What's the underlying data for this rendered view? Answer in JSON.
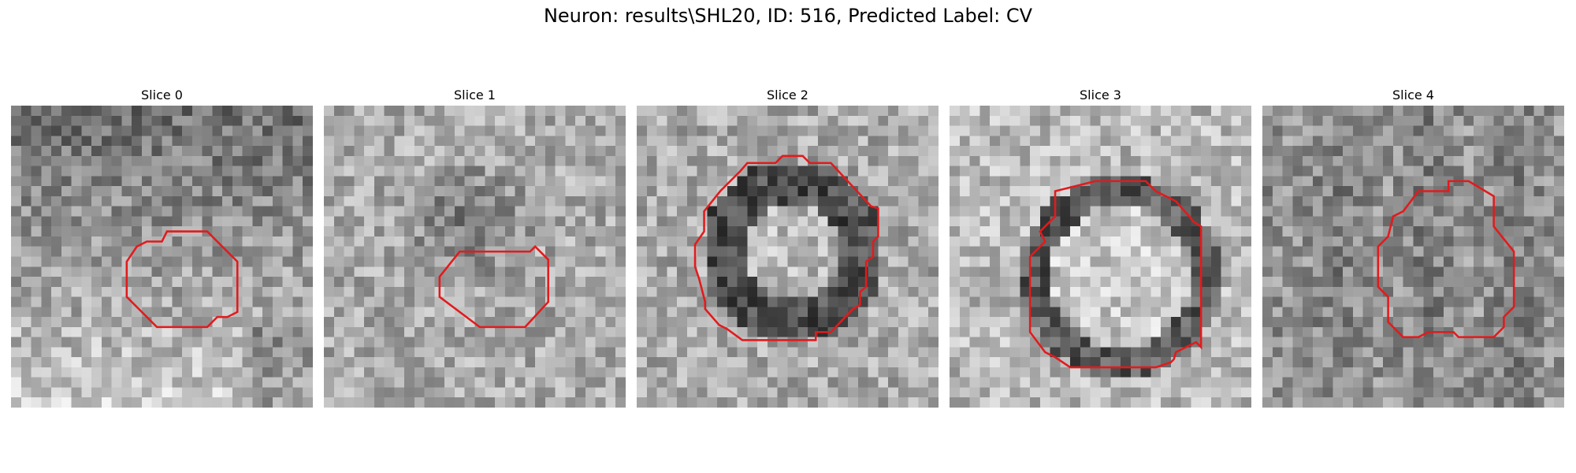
{
  "figure": {
    "title": "Neuron: results\\SHL20, ID: 516, Predicted Label: CV"
  },
  "slices": [
    {
      "title": "Slice 0"
    },
    {
      "title": "Slice 1"
    },
    {
      "title": "Slice 2"
    },
    {
      "title": "Slice 3"
    },
    {
      "title": "Slice 4"
    }
  ],
  "colors": {
    "contour": "#e31a1c",
    "background": "#ffffff"
  }
}
